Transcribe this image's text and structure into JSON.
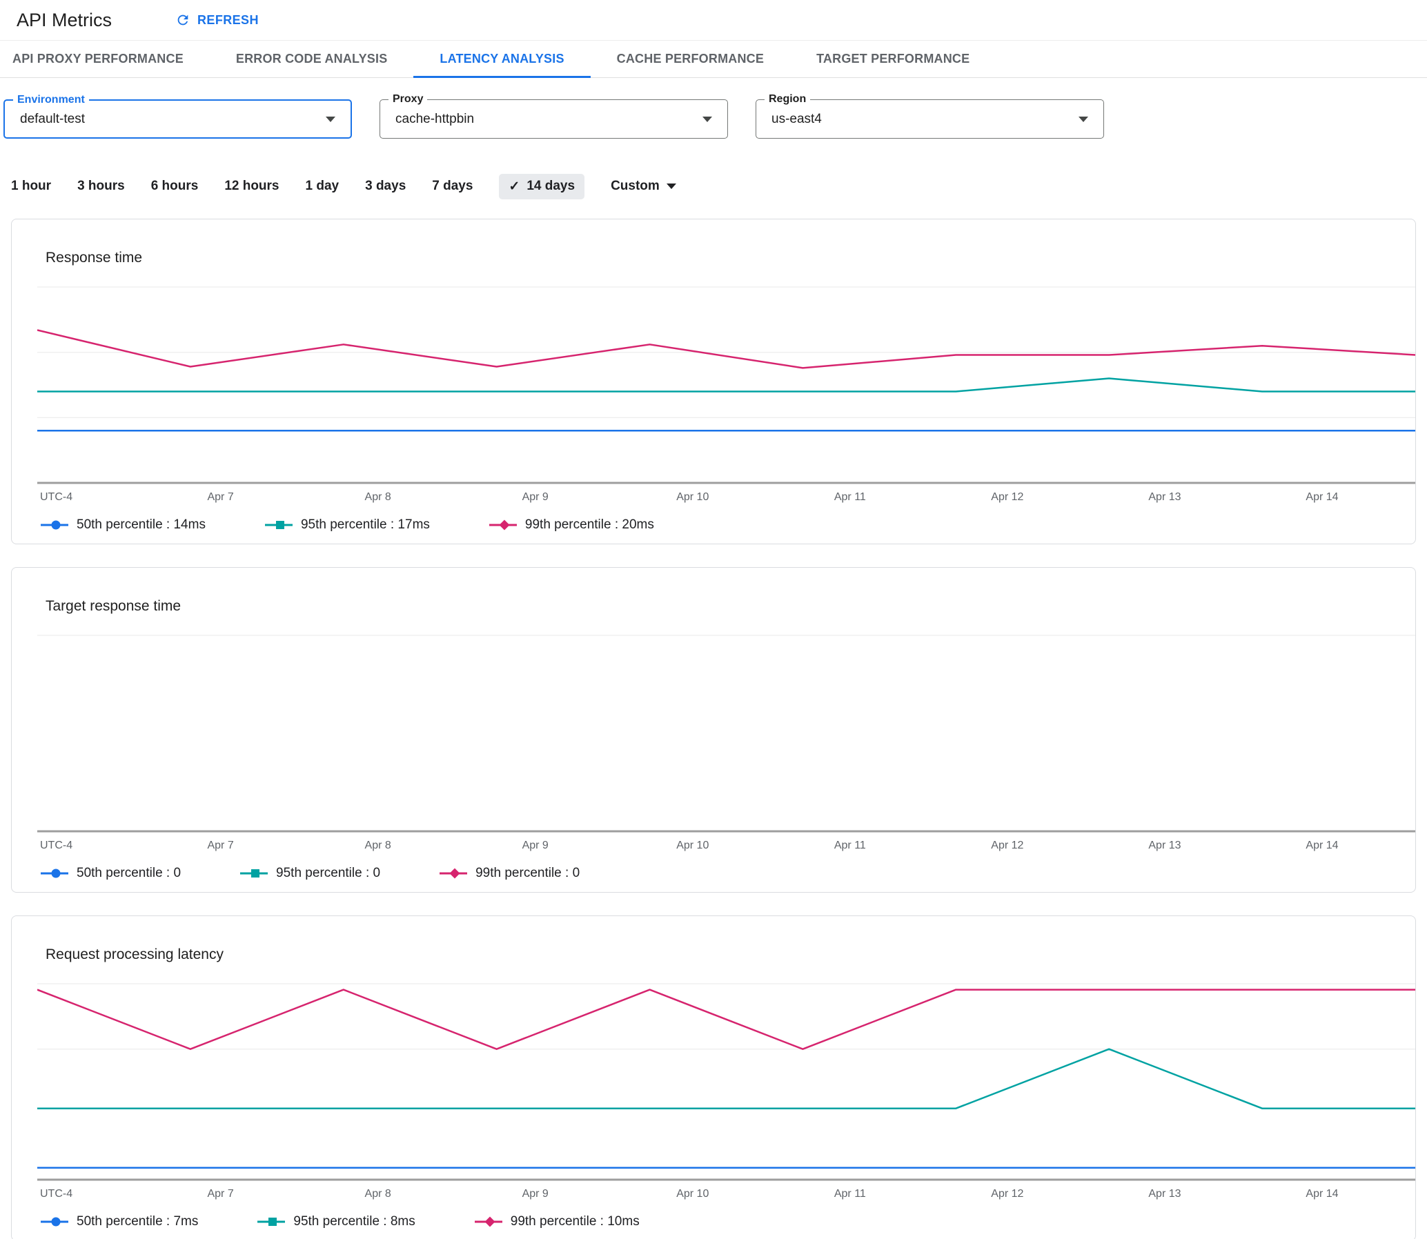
{
  "header": {
    "title": "API Metrics",
    "refresh_label": "REFRESH"
  },
  "tabs": [
    {
      "label": "API PROXY PERFORMANCE",
      "active": false
    },
    {
      "label": "ERROR CODE ANALYSIS",
      "active": false
    },
    {
      "label": "LATENCY ANALYSIS",
      "active": true
    },
    {
      "label": "CACHE PERFORMANCE",
      "active": false
    },
    {
      "label": "TARGET PERFORMANCE",
      "active": false
    }
  ],
  "filters": [
    {
      "label": "Environment",
      "value": "default-test",
      "focused": true
    },
    {
      "label": "Proxy",
      "value": "cache-httpbin",
      "focused": false
    },
    {
      "label": "Region",
      "value": "us-east4",
      "focused": false
    }
  ],
  "time_range": {
    "options": [
      "1 hour",
      "3 hours",
      "6 hours",
      "12 hours",
      "1 day",
      "3 days",
      "7 days",
      "14 days",
      "Custom"
    ],
    "selected": "14 days"
  },
  "colors": {
    "accent_blue": "#1a73e8",
    "series_p50": "#1a73e8",
    "series_p95": "#00a2a2",
    "series_p99": "#d6246e",
    "axis": "#9e9e9e",
    "gridline": "#e8e8e8",
    "selected_chip_bg": "#e8eaed"
  },
  "chart_data": [
    {
      "type": "line",
      "title": "Response time",
      "x_axis_labels": [
        "UTC-4",
        "Apr 7",
        "Apr 8",
        "Apr 9",
        "Apr 10",
        "Apr 11",
        "Apr 12",
        "Apr 13",
        "Apr 14"
      ],
      "ylim": [
        10,
        25
      ],
      "gridlines": [
        15,
        20,
        25
      ],
      "legend_position": "bottom",
      "series": [
        {
          "name": "50th percentile",
          "legend": "50th percentile : 14ms",
          "color": "#1a73e8",
          "marker": "circle",
          "values": [
            14,
            14,
            14,
            14,
            14,
            14,
            14,
            14,
            14,
            14
          ]
        },
        {
          "name": "95th percentile",
          "legend": "95th percentile : 17ms",
          "color": "#00a2a2",
          "marker": "square",
          "values": [
            17,
            17,
            17,
            17,
            17,
            17,
            17,
            18,
            17,
            17
          ]
        },
        {
          "name": "99th percentile",
          "legend": "99th percentile : 20ms",
          "color": "#d6246e",
          "marker": "diamond",
          "values": [
            21.7,
            18.9,
            20.6,
            18.9,
            20.6,
            18.8,
            19.8,
            19.8,
            20.5,
            19.8
          ]
        }
      ]
    },
    {
      "type": "line",
      "title": "Target response time",
      "x_axis_labels": [
        "UTC-4",
        "Apr 7",
        "Apr 8",
        "Apr 9",
        "Apr 10",
        "Apr 11",
        "Apr 12",
        "Apr 13",
        "Apr 14"
      ],
      "ylim": [
        0,
        1
      ],
      "gridlines": [
        1
      ],
      "legend_position": "bottom",
      "series": [
        {
          "name": "50th percentile",
          "legend": "50th percentile : 0",
          "color": "#1a73e8",
          "marker": "circle",
          "values": [
            0,
            0,
            0,
            0,
            0,
            0,
            0,
            0,
            0,
            0
          ]
        },
        {
          "name": "95th percentile",
          "legend": "95th percentile : 0",
          "color": "#00a2a2",
          "marker": "square",
          "values": [
            0,
            0,
            0,
            0,
            0,
            0,
            0,
            0,
            0,
            0
          ]
        },
        {
          "name": "99th percentile",
          "legend": "99th percentile : 0",
          "color": "#d6246e",
          "marker": "diamond",
          "values": [
            0,
            0,
            0,
            0,
            0,
            0,
            0,
            0,
            0,
            0
          ]
        }
      ]
    },
    {
      "type": "line",
      "title": "Request processing latency",
      "x_axis_labels": [
        "UTC-4",
        "Apr 7",
        "Apr 8",
        "Apr 9",
        "Apr 10",
        "Apr 11",
        "Apr 12",
        "Apr 13",
        "Apr 14"
      ],
      "ylim": [
        6.8,
        10.1
      ],
      "gridlines": [
        9,
        10.1
      ],
      "legend_position": "bottom",
      "series": [
        {
          "name": "50th percentile",
          "legend": "50th percentile : 7ms",
          "color": "#1a73e8",
          "marker": "circle",
          "values": [
            7,
            7,
            7,
            7,
            7,
            7,
            7,
            7,
            7,
            7
          ]
        },
        {
          "name": "95th percentile",
          "legend": "95th percentile : 8ms",
          "color": "#00a2a2",
          "marker": "square",
          "values": [
            8,
            8,
            8,
            8,
            8,
            8,
            8,
            9,
            8,
            8
          ]
        },
        {
          "name": "99th percentile",
          "legend": "99th percentile : 10ms",
          "color": "#d6246e",
          "marker": "diamond",
          "values": [
            10,
            9,
            10,
            9,
            10,
            9,
            10,
            10,
            10,
            10
          ]
        }
      ]
    }
  ]
}
